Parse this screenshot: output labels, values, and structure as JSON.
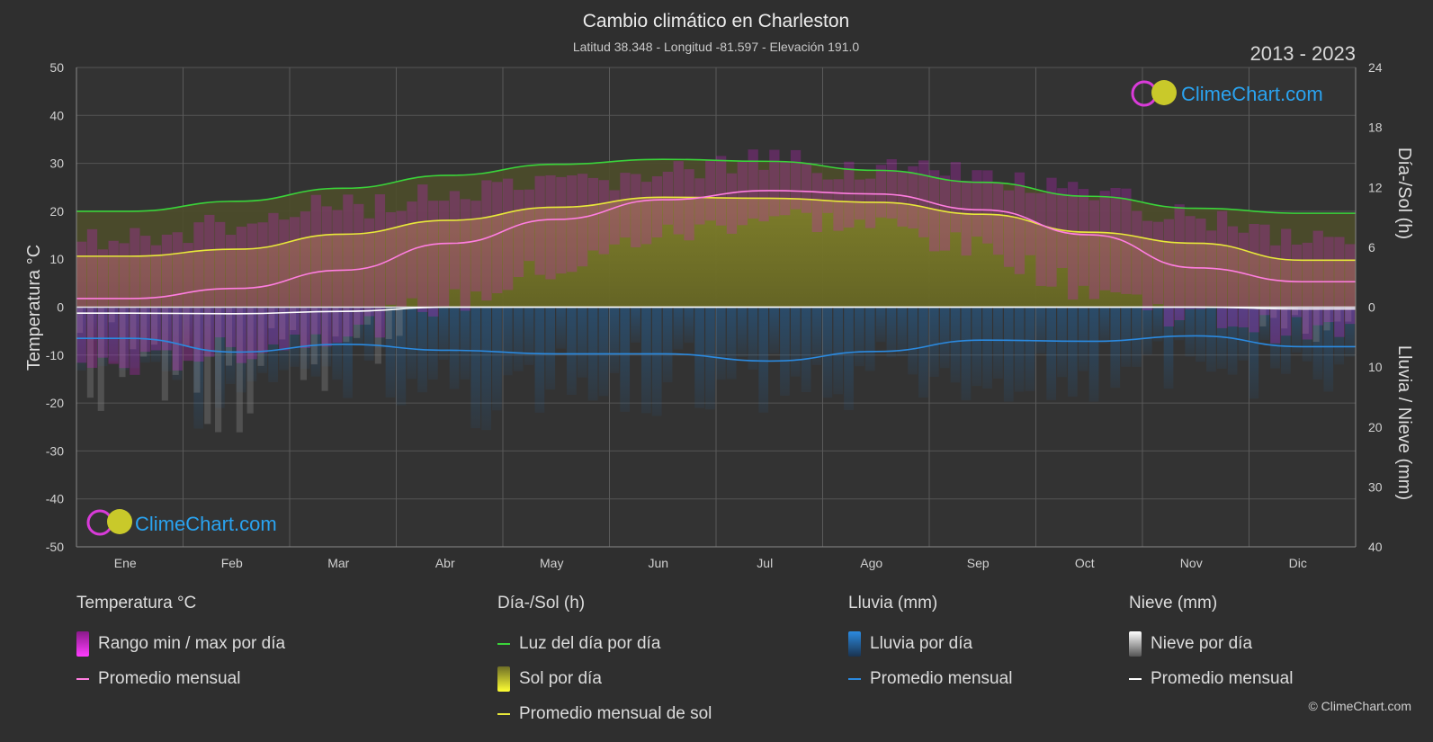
{
  "chart_data": {
    "type": "area",
    "title": "Cambio climático en Charleston",
    "subtitle": "Latitud 38.348 - Longitud -81.597 - Elevación 191.0",
    "year_range": "2013 - 2023",
    "categories": [
      "Ene",
      "Feb",
      "Mar",
      "Abr",
      "May",
      "Jun",
      "Jul",
      "Ago",
      "Sep",
      "Oct",
      "Nov",
      "Dic"
    ],
    "y_left": {
      "label": "Temperatura °C",
      "min": -50,
      "max": 50,
      "ticks": [
        50,
        40,
        30,
        20,
        10,
        0,
        -10,
        -20,
        -30,
        -40,
        -50
      ]
    },
    "y_right_top": {
      "label": "Día-/Sol (h)",
      "ticks": [
        24,
        18,
        12,
        6,
        0
      ]
    },
    "y_right_bottom": {
      "label": "Lluvia / Nieve (mm)",
      "ticks": [
        0,
        10,
        20,
        30,
        40
      ]
    },
    "series": {
      "daylight_hours": [
        9.6,
        10.6,
        11.9,
        13.2,
        14.3,
        14.8,
        14.6,
        13.7,
        12.5,
        11.1,
        9.9,
        9.4
      ],
      "sunshine_hours": [
        5.1,
        5.8,
        7.3,
        8.7,
        10.0,
        11.0,
        10.9,
        10.5,
        9.3,
        7.5,
        6.4,
        4.7
      ],
      "temp_mean": [
        1.8,
        3.9,
        7.7,
        13.3,
        18.3,
        22.4,
        24.3,
        23.6,
        20.3,
        15.1,
        8.2,
        5.3
      ],
      "temp_max_range": [
        17,
        20,
        24,
        26,
        28,
        31,
        33,
        32,
        30,
        26,
        22,
        18
      ],
      "temp_min_range": [
        -15,
        -12,
        -8,
        -2,
        5,
        12,
        16,
        14,
        9,
        1,
        -5,
        -8
      ],
      "rain_mean_mm": [
        5.2,
        7.5,
        6.2,
        7.2,
        7.8,
        7.8,
        9.0,
        7.4,
        5.5,
        5.7,
        4.8,
        6.6
      ],
      "snow_mean_mm": [
        1.0,
        1.1,
        0.7,
        0,
        0,
        0,
        0,
        0,
        0,
        0,
        0,
        0.3
      ]
    },
    "colors": {
      "daylight": "#3ad43a",
      "sunshine": "#e8e83a",
      "temp_mean": "#ff7ee0",
      "temp_range": "#d21fd2",
      "rain": "#2b8ae0",
      "snow": "#ffffff"
    }
  },
  "logo": {
    "text": "ClimeChart.com"
  },
  "legend": {
    "temperature": {
      "title": "Temperatura °C",
      "items": [
        "Rango min / max por día",
        "Promedio mensual"
      ]
    },
    "daylight": {
      "title": "Día-/Sol (h)",
      "items": [
        "Luz del día por día",
        "Sol por día",
        "Promedio mensual de sol"
      ]
    },
    "rain": {
      "title": "Lluvia (mm)",
      "items": [
        "Lluvia por día",
        "Promedio mensual"
      ]
    },
    "snow": {
      "title": "Nieve (mm)",
      "items": [
        "Nieve por día",
        "Promedio mensual"
      ]
    }
  },
  "copyright": "© ClimeChart.com"
}
